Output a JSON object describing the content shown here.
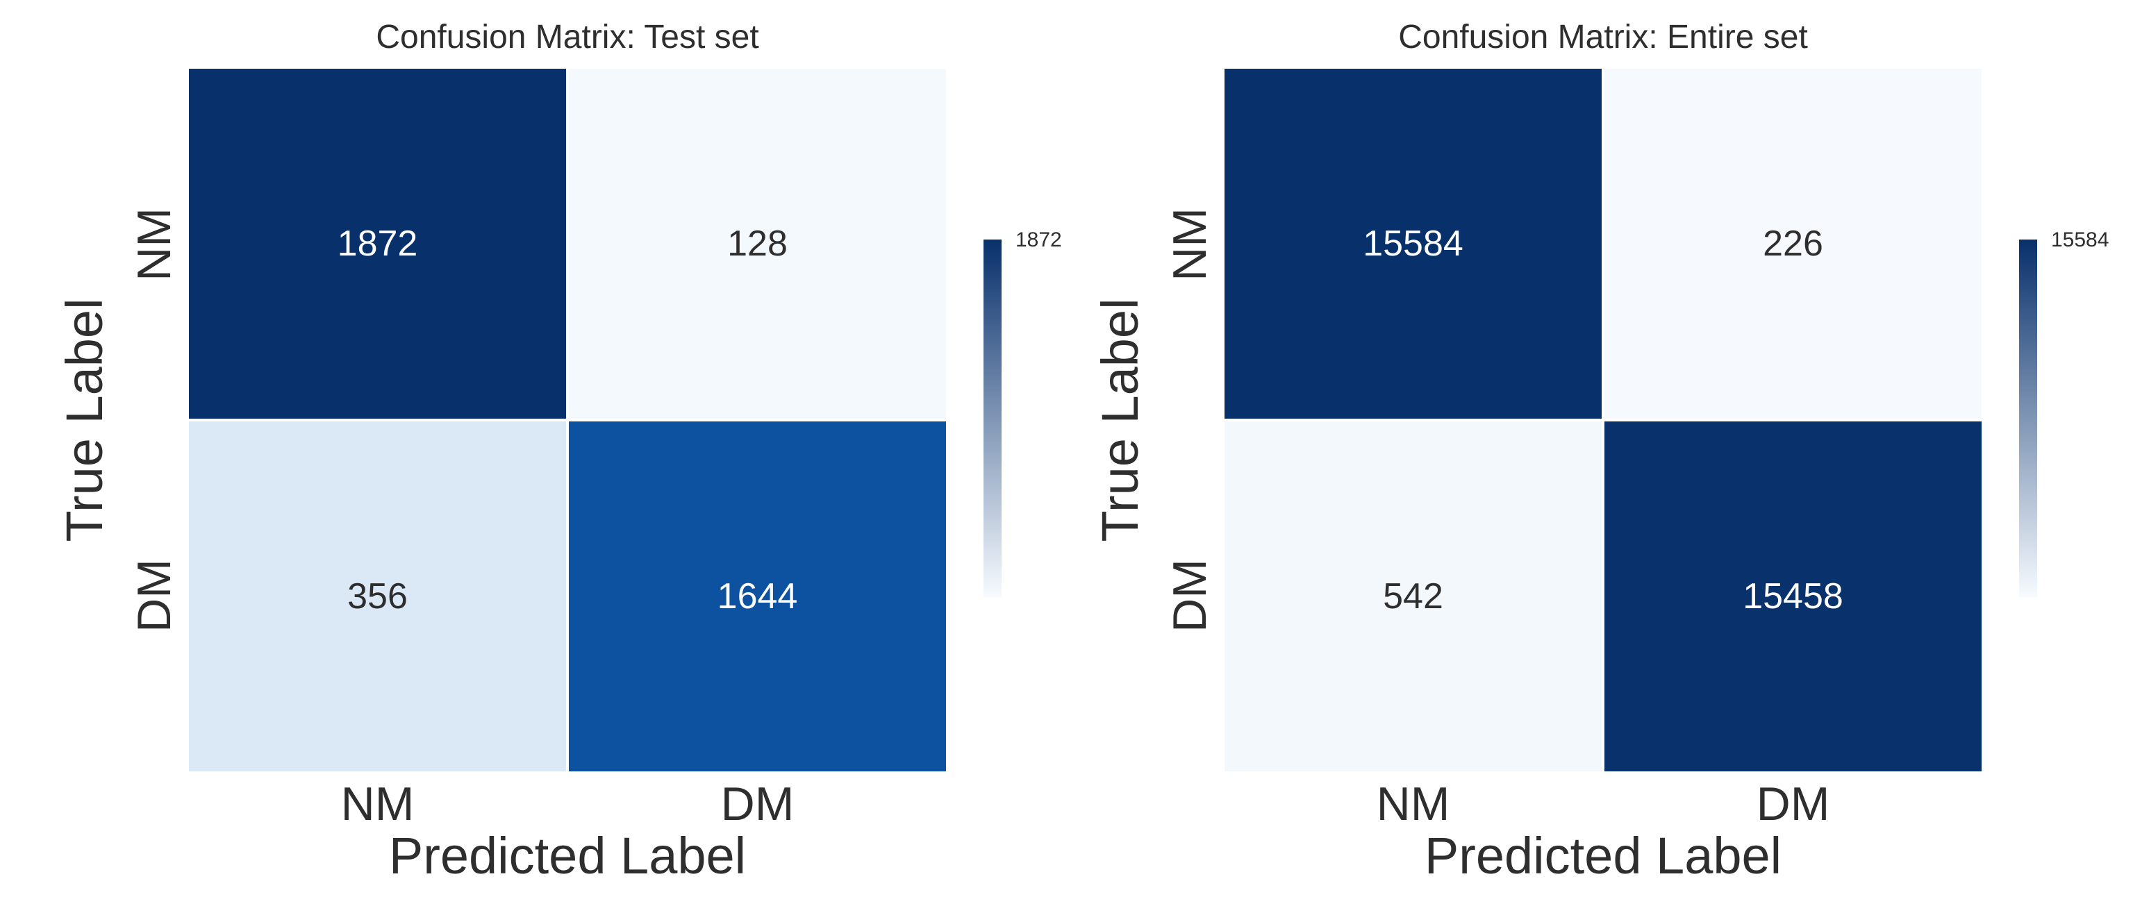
{
  "figure": {
    "background": "#ffffff"
  },
  "colors": {
    "cmap_max": "#08306b",
    "cmap_min": "#f7fbff",
    "text": "#2e2e2e",
    "cell_gap": "#ffffff"
  },
  "chart_data": [
    {
      "type": "heatmap",
      "title": "Confusion Matrix: Test set",
      "xlabel": "Predicted Label",
      "ylabel": "True Label",
      "x_categories": [
        "NM",
        "DM"
      ],
      "y_categories": [
        "NM",
        "DM"
      ],
      "values": [
        [
          1872,
          128
        ],
        [
          356,
          1644
        ]
      ],
      "colormap": "Blues",
      "colorbar_top_tick_label": "1872",
      "colorbar_position": "right",
      "grid": false
    },
    {
      "type": "heatmap",
      "title": "Confusion Matrix: Entire set",
      "xlabel": "Predicted Label",
      "ylabel": "True Label",
      "x_categories": [
        "NM",
        "DM"
      ],
      "y_categories": [
        "NM",
        "DM"
      ],
      "values": [
        [
          15584,
          226
        ],
        [
          542,
          15458
        ]
      ],
      "colormap": "Blues",
      "colorbar_top_tick_label": "15584",
      "colorbar_position": "right",
      "grid": false
    }
  ],
  "panels": [
    {
      "title": "Confusion Matrix: Test set",
      "xlabel": "Predicted Label",
      "ylabel": "True Label",
      "x_ticks": [
        "NM",
        "DM"
      ],
      "y_ticks": [
        "NM",
        "DM"
      ],
      "colorbar_label": "1872",
      "cells": [
        {
          "value": "1872",
          "bg": "#08306b",
          "fg": "#ffffff"
        },
        {
          "value": "128",
          "bg": "#f4f9fe",
          "fg": "#2e2e2e"
        },
        {
          "value": "356",
          "bg": "#dbe9f6",
          "fg": "#2e2e2e"
        },
        {
          "value": "1644",
          "bg": "#0d52a1",
          "fg": "#ffffff"
        }
      ]
    },
    {
      "title": "Confusion Matrix: Entire set",
      "xlabel": "Predicted Label",
      "ylabel": "True Label",
      "x_ticks": [
        "NM",
        "DM"
      ],
      "y_ticks": [
        "NM",
        "DM"
      ],
      "colorbar_label": "15584",
      "cells": [
        {
          "value": "15584",
          "bg": "#08306b",
          "fg": "#ffffff"
        },
        {
          "value": "226",
          "bg": "#f6fafe",
          "fg": "#2e2e2e"
        },
        {
          "value": "542",
          "bg": "#f3f8fd",
          "fg": "#2e2e2e"
        },
        {
          "value": "15458",
          "bg": "#09316c",
          "fg": "#ffffff"
        }
      ]
    }
  ]
}
